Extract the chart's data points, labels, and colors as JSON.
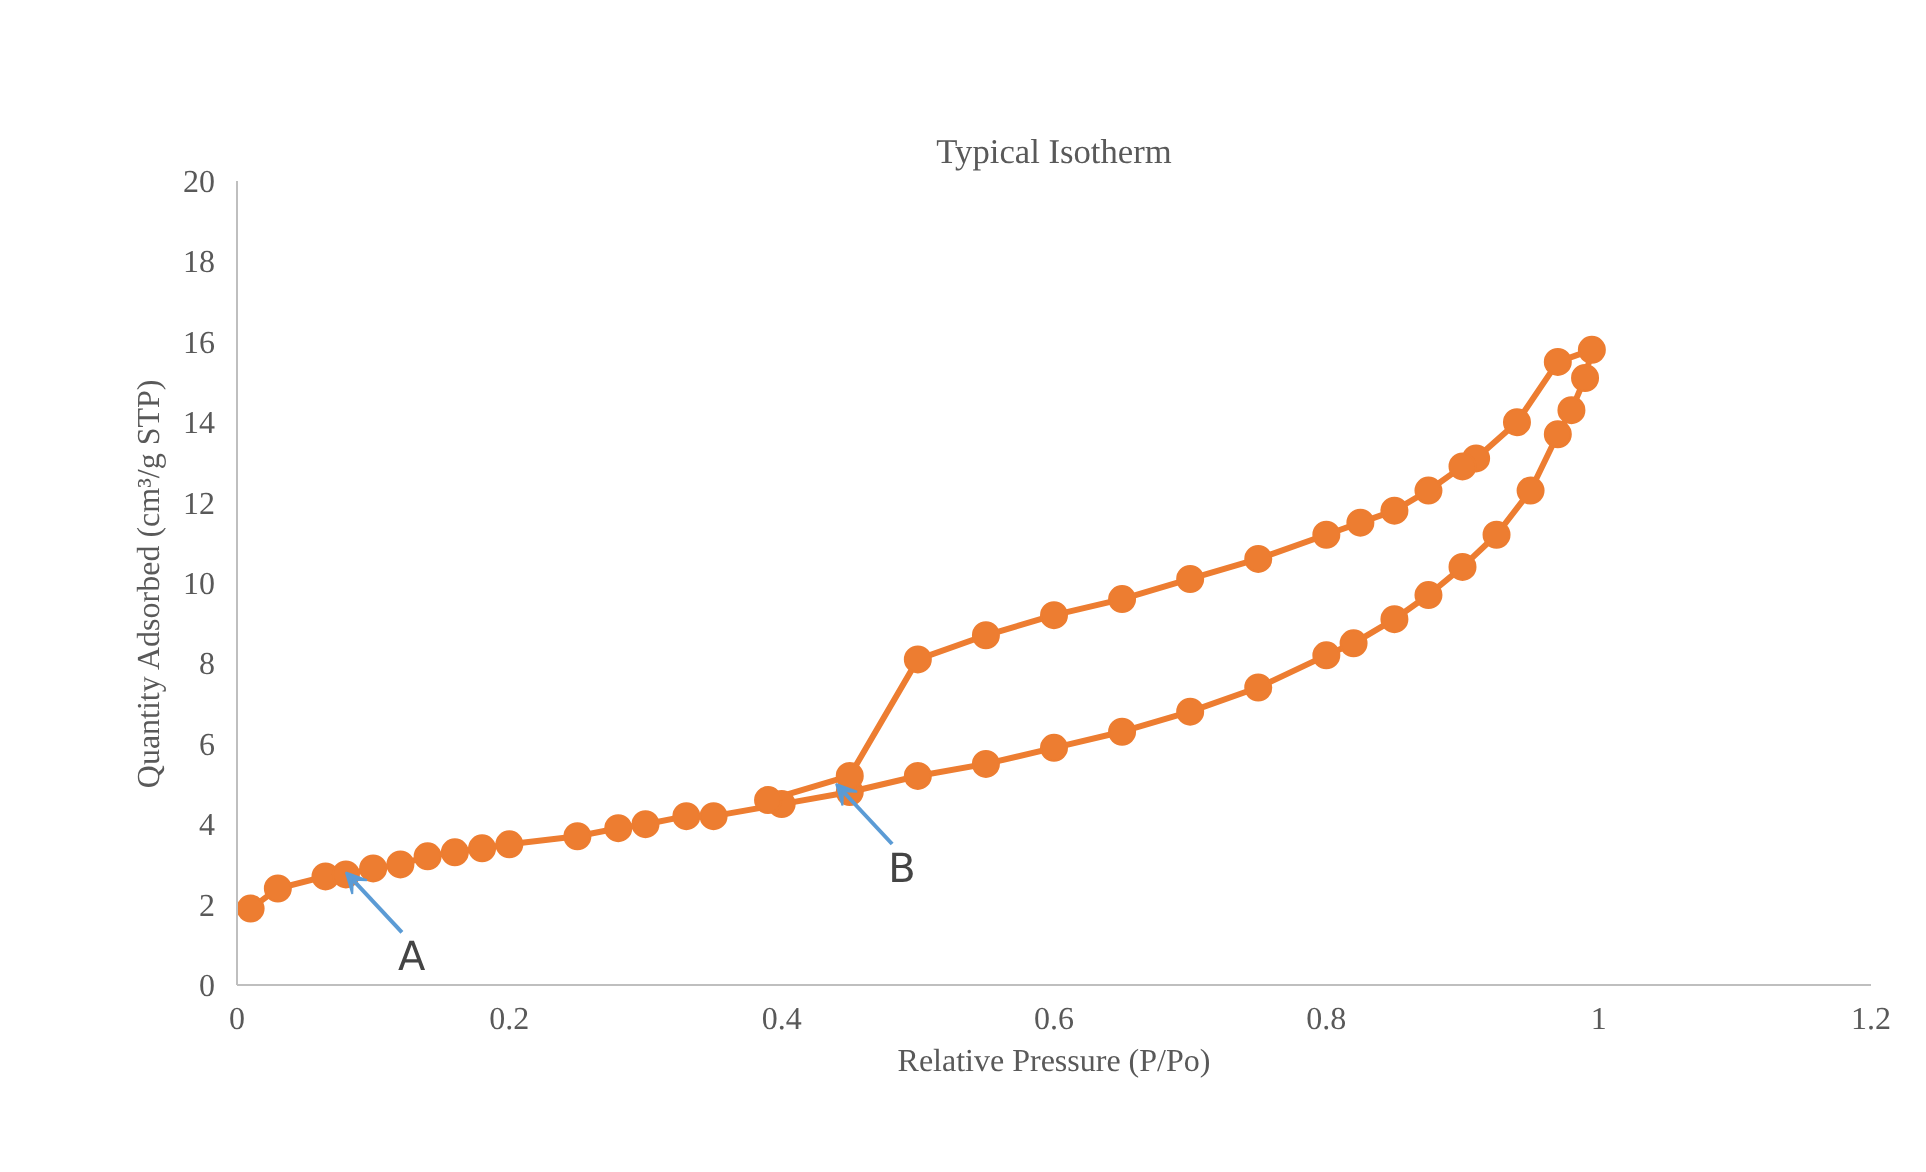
{
  "chart_data": {
    "type": "line",
    "title": "Typical Isotherm",
    "xlabel": "Relative Pressure (P/Po)",
    "ylabel": "Quantity Adsorbed (cm³/g STP)",
    "xlim": [
      0,
      1.2
    ],
    "xticks": [
      0,
      0.2,
      0.4,
      0.6,
      0.8,
      1,
      1.2
    ],
    "ylim": [
      0,
      20
    ],
    "yticks": [
      0,
      2,
      4,
      6,
      8,
      10,
      12,
      14,
      16,
      18,
      20
    ],
    "grid": false,
    "marker": "circle",
    "line_style": "solid",
    "series": [
      {
        "color": "#ed7d31",
        "x": [
          0.01,
          0.03,
          0.065,
          0.08,
          0.1,
          0.12,
          0.14,
          0.16,
          0.18,
          0.2,
          0.25,
          0.28,
          0.3,
          0.33,
          0.35,
          0.4,
          0.45,
          0.5,
          0.55,
          0.6,
          0.65,
          0.7,
          0.75,
          0.8,
          0.82,
          0.85,
          0.875,
          0.9,
          0.925,
          0.95,
          0.97,
          0.98,
          0.99,
          0.995,
          0.97,
          0.94,
          0.91,
          0.9,
          0.875,
          0.85,
          0.825,
          0.8,
          0.75,
          0.7,
          0.65,
          0.6,
          0.55,
          0.5,
          0.45,
          0.39
        ],
        "values": [
          1.9,
          2.4,
          2.7,
          2.75,
          2.9,
          3.0,
          3.2,
          3.3,
          3.4,
          3.5,
          3.7,
          3.9,
          4.0,
          4.2,
          4.2,
          4.5,
          4.8,
          5.2,
          5.5,
          5.9,
          6.3,
          6.8,
          7.4,
          8.2,
          8.5,
          9.1,
          9.7,
          10.4,
          11.2,
          12.3,
          13.7,
          14.3,
          15.1,
          15.8,
          15.5,
          14.0,
          13.1,
          12.9,
          12.3,
          11.8,
          11.5,
          11.2,
          10.6,
          10.1,
          9.6,
          9.2,
          8.7,
          8.1,
          5.2,
          4.6
        ]
      }
    ],
    "annotations": [
      {
        "text": "A",
        "x": 0.08,
        "y": 2.8
      },
      {
        "text": "B",
        "x": 0.44,
        "y": 5.0
      }
    ]
  }
}
